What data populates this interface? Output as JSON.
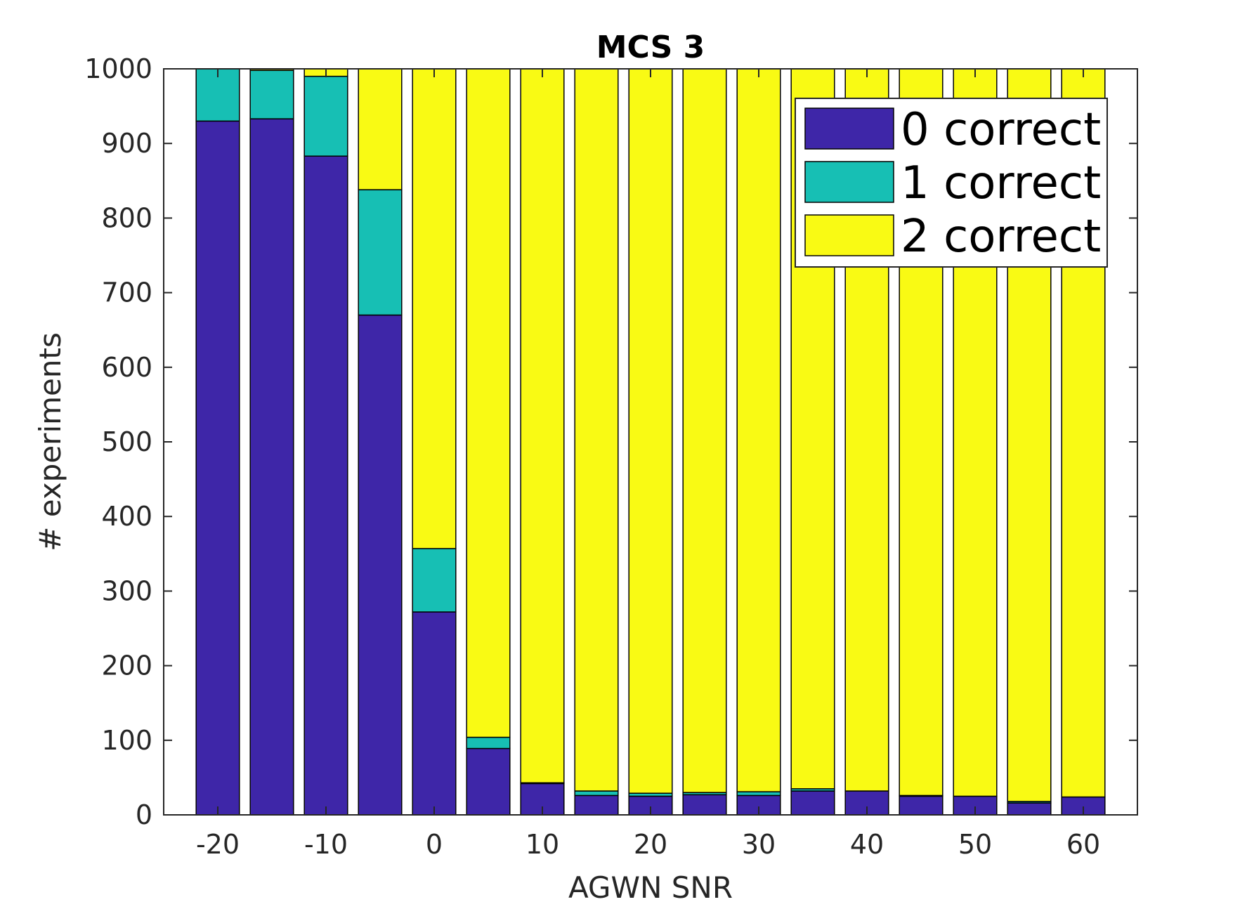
{
  "chart_data": {
    "type": "bar",
    "stacked": true,
    "title": "MCS 3",
    "xlabel": "AGWN SNR",
    "ylabel": "# experiments",
    "x": [
      -20,
      -15,
      -10,
      -5,
      0,
      5,
      10,
      15,
      20,
      25,
      30,
      35,
      40,
      45,
      50,
      55,
      60
    ],
    "xlim": [
      -25,
      65
    ],
    "ylim": [
      0,
      1000
    ],
    "xticks": [
      -20,
      -10,
      0,
      10,
      20,
      30,
      40,
      50,
      60
    ],
    "yticks": [
      0,
      100,
      200,
      300,
      400,
      500,
      600,
      700,
      800,
      900,
      1000
    ],
    "grid": false,
    "legend_position": "top-right",
    "series": [
      {
        "name": "0 correct",
        "color": "#3e26a8",
        "values": [
          930,
          933,
          883,
          670,
          272,
          89,
          42,
          26,
          25,
          27,
          26,
          32,
          32,
          25,
          25,
          16,
          24
        ]
      },
      {
        "name": "1 correct",
        "color": "#17bfb4",
        "values": [
          70,
          65,
          107,
          168,
          85,
          15,
          1,
          6,
          4,
          3,
          5,
          3,
          0,
          1,
          0,
          2,
          0
        ]
      },
      {
        "name": "2 correct",
        "color": "#f9fa14",
        "values": [
          0,
          2,
          10,
          162,
          643,
          896,
          957,
          968,
          971,
          970,
          969,
          965,
          968,
          974,
          975,
          982,
          976
        ]
      }
    ]
  }
}
